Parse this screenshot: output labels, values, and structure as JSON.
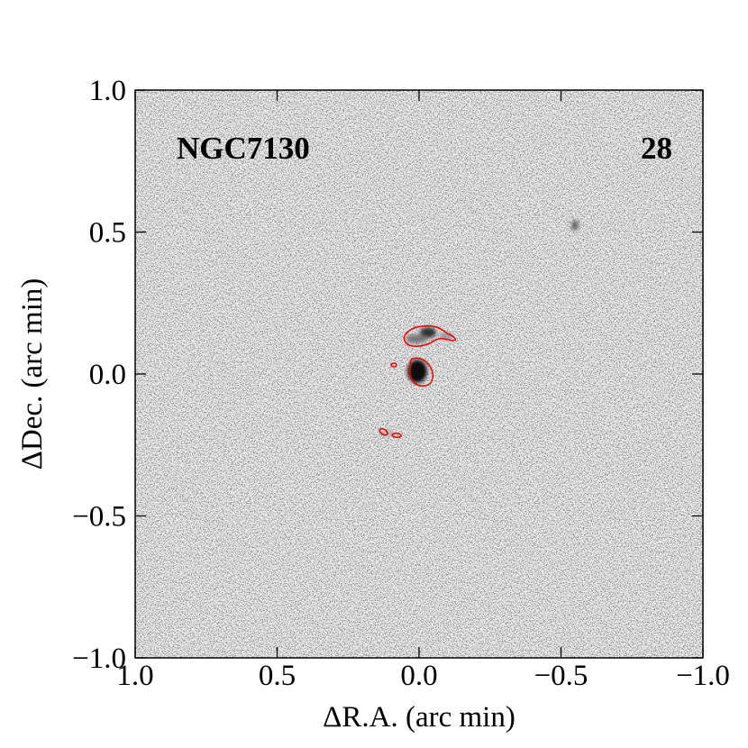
{
  "chart_data": {
    "type": "image",
    "annotations": [
      "NGC7130",
      "28"
    ],
    "xlabel": "ΔR.A. (arc min)",
    "ylabel": "ΔDec. (arc min)",
    "xlim": [
      1,
      -1
    ],
    "ylim": [
      -1,
      1
    ],
    "xticks": [
      {
        "value": 1,
        "label": "1.0"
      },
      {
        "value": 0.5,
        "label": "0.5"
      },
      {
        "value": 0,
        "label": "0.0"
      },
      {
        "value": -0.5,
        "label": "−0.5"
      },
      {
        "value": -1,
        "label": "−1.0"
      }
    ],
    "yticks": [
      {
        "value": -1,
        "label": "−1.0"
      },
      {
        "value": -0.5,
        "label": "−0.5"
      },
      {
        "value": 0,
        "label": "0.0"
      },
      {
        "value": 0.5,
        "label": "0.5"
      },
      {
        "value": 1,
        "label": "1.0"
      }
    ]
  }
}
